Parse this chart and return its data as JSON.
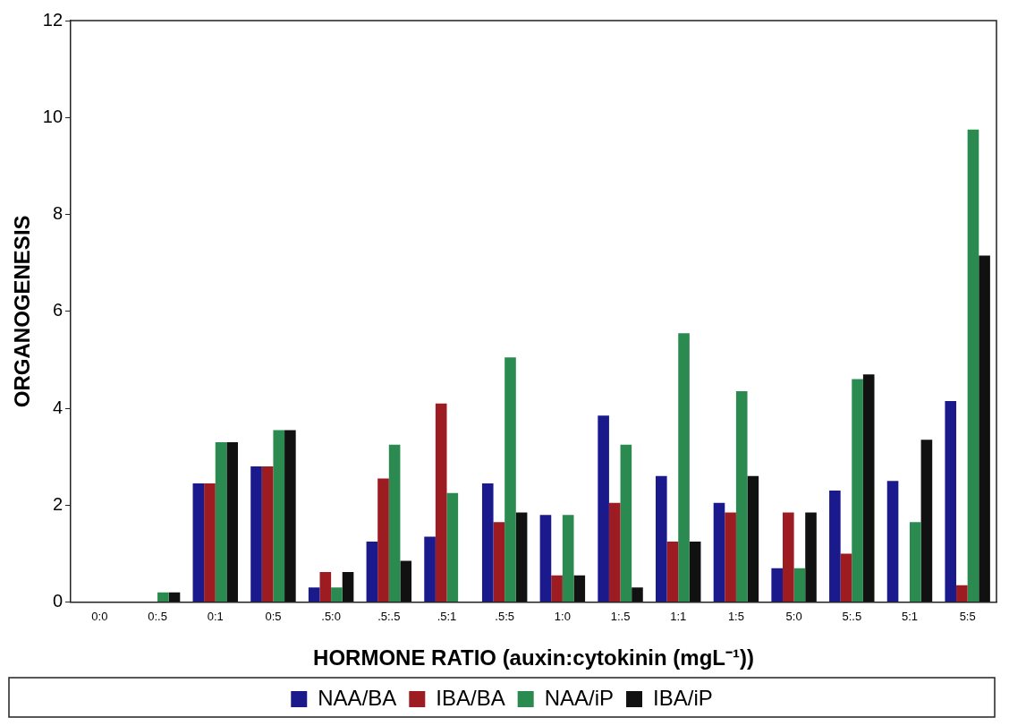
{
  "chart_data": {
    "type": "bar",
    "xlabel": "HORMONE RATIO (auxin:cytokinin (mgL⁻¹))",
    "ylabel": "ORGANOGENESIS",
    "categories": [
      "0:0",
      "0:.5",
      "0:1",
      "0:5",
      ".5:0",
      ".5:.5",
      ".5:1",
      ".5:5",
      "1:0",
      "1:.5",
      "1:1",
      "1:5",
      "5:0",
      "5:.5",
      "5:1",
      "5:5"
    ],
    "series": [
      {
        "name": "NAA/BA",
        "color": "#1a1a8c",
        "values": [
          0,
          0,
          2.45,
          2.8,
          0.3,
          1.25,
          1.35,
          2.45,
          1.8,
          3.85,
          2.6,
          2.05,
          0.7,
          2.3,
          2.5,
          4.15
        ]
      },
      {
        "name": "IBA/BA",
        "color": "#9c1c22",
        "values": [
          0,
          0,
          2.45,
          2.8,
          0.62,
          2.55,
          4.1,
          1.65,
          0.55,
          2.05,
          1.25,
          1.85,
          1.85,
          1.0,
          0,
          0.35
        ]
      },
      {
        "name": "NAA/iP",
        "color": "#2a8a50",
        "values": [
          0,
          0.2,
          3.3,
          3.55,
          0.3,
          3.25,
          2.25,
          5.05,
          1.8,
          3.25,
          5.55,
          4.35,
          0.7,
          4.6,
          1.65,
          9.75
        ]
      },
      {
        "name": "IBA/iP",
        "color": "#111111",
        "values": [
          0,
          0.2,
          3.3,
          3.55,
          0.62,
          0.85,
          0,
          1.85,
          0.55,
          0.3,
          1.25,
          2.6,
          1.85,
          4.7,
          3.35,
          7.15
        ]
      }
    ],
    "ylim": [
      0,
      12
    ],
    "yticks": [
      0,
      2,
      4,
      6,
      8,
      10,
      12
    ],
    "grid": false,
    "legend": "bottom"
  }
}
